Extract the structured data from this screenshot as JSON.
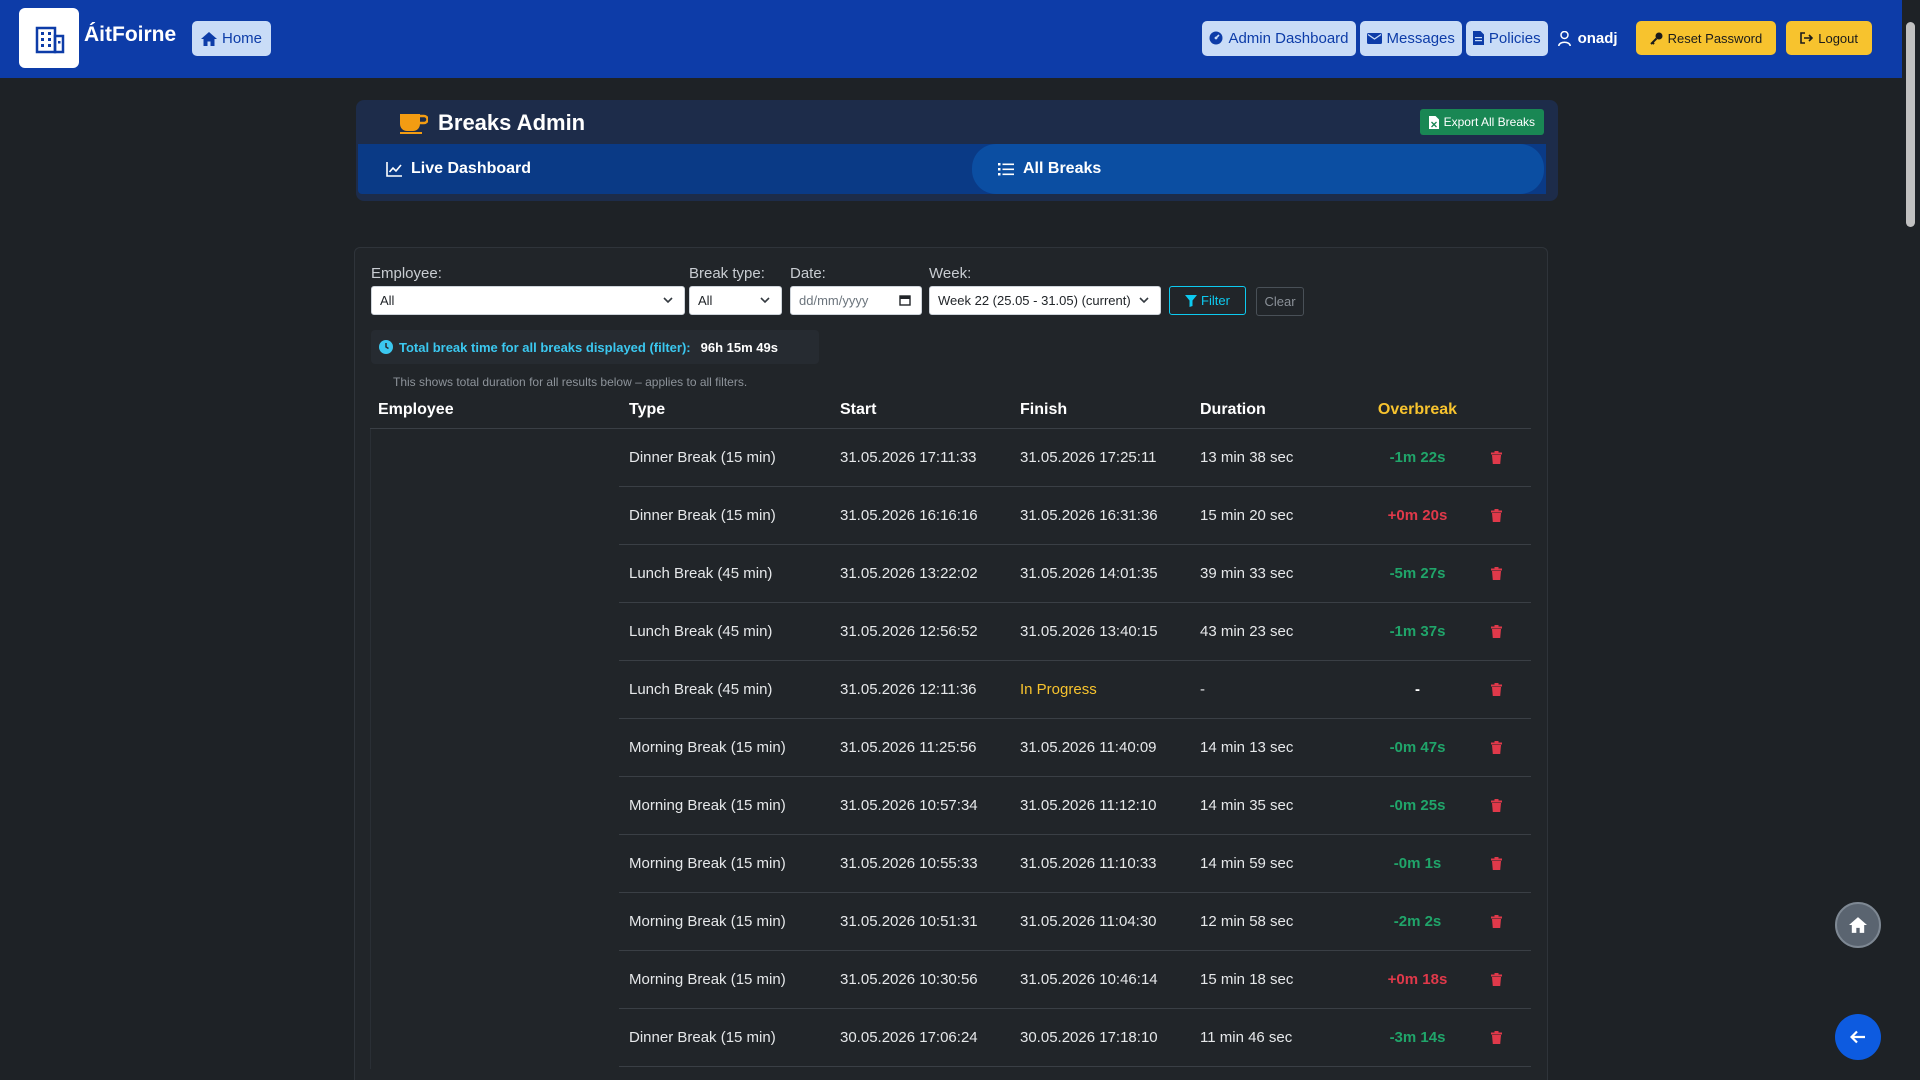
{
  "navbar": {
    "brand": "ÁitFoirne",
    "home_label": "Home",
    "admin_dashboard_label": "Admin Dashboard",
    "messages_label": "Messages",
    "policies_label": "Policies",
    "username": "onadj",
    "reset_password_label": "Reset Password",
    "logout_label": "Logout"
  },
  "header": {
    "title": "Breaks Admin",
    "export_label": "Export All Breaks",
    "tabs": [
      {
        "label": "Live Dashboard"
      },
      {
        "label": "All Breaks"
      }
    ]
  },
  "filters": {
    "employee_label": "Employee:",
    "employee_value": "All",
    "break_type_label": "Break type:",
    "break_type_value": "All",
    "date_label": "Date:",
    "date_placeholder": "dd/mm/yyyy",
    "week_label": "Week:",
    "week_value": "Week 22 (25.05 - 31.05) (current)",
    "filter_label": "Filter",
    "clear_label": "Clear"
  },
  "summary": {
    "total_label": "Total break time for all breaks displayed (filter):",
    "total_value": "96h 15m 49s",
    "note": "This shows total duration for all results below – applies to all filters."
  },
  "table": {
    "headers": {
      "employee": "Employee",
      "type": "Type",
      "start": "Start",
      "finish": "Finish",
      "duration": "Duration",
      "overbreak": "Overbreak"
    },
    "rows": [
      {
        "type": "Dinner Break (15 min)",
        "start": "31.05.2026 17:11:33",
        "finish": "31.05.2026 17:25:11",
        "duration": "13 min 38 sec",
        "overbreak": "-1m 22s",
        "status": "green"
      },
      {
        "type": "Dinner Break (15 min)",
        "start": "31.05.2026 16:16:16",
        "finish": "31.05.2026 16:31:36",
        "duration": "15 min 20 sec",
        "overbreak": "+0m 20s",
        "status": "red"
      },
      {
        "type": "Lunch Break (45 min)",
        "start": "31.05.2026 13:22:02",
        "finish": "31.05.2026 14:01:35",
        "duration": "39 min 33 sec",
        "overbreak": "-5m 27s",
        "status": "green"
      },
      {
        "type": "Lunch Break (45 min)",
        "start": "31.05.2026 12:56:52",
        "finish": "31.05.2026 13:40:15",
        "duration": "43 min 23 sec",
        "overbreak": "-1m 37s",
        "status": "green"
      },
      {
        "type": "Lunch Break (45 min)",
        "start": "31.05.2026 12:11:36",
        "finish": "In Progress",
        "duration": "-",
        "overbreak": "-",
        "status": "white"
      },
      {
        "type": "Morning Break (15 min)",
        "start": "31.05.2026 11:25:56",
        "finish": "31.05.2026 11:40:09",
        "duration": "14 min 13 sec",
        "overbreak": "-0m 47s",
        "status": "green"
      },
      {
        "type": "Morning Break (15 min)",
        "start": "31.05.2026 10:57:34",
        "finish": "31.05.2026 11:12:10",
        "duration": "14 min 35 sec",
        "overbreak": "-0m 25s",
        "status": "green"
      },
      {
        "type": "Morning Break (15 min)",
        "start": "31.05.2026 10:55:33",
        "finish": "31.05.2026 11:10:33",
        "duration": "14 min 59 sec",
        "overbreak": "-0m 1s",
        "status": "green"
      },
      {
        "type": "Morning Break (15 min)",
        "start": "31.05.2026 10:51:31",
        "finish": "31.05.2026 11:04:30",
        "duration": "12 min 58 sec",
        "overbreak": "-2m 2s",
        "status": "green"
      },
      {
        "type": "Morning Break (15 min)",
        "start": "31.05.2026 10:30:56",
        "finish": "31.05.2026 10:46:14",
        "duration": "15 min 18 sec",
        "overbreak": "+0m 18s",
        "status": "red"
      },
      {
        "type": "Dinner Break (15 min)",
        "start": "30.05.2026 17:06:24",
        "finish": "30.05.2026 17:18:10",
        "duration": "11 min 46 sec",
        "overbreak": "-3m 14s",
        "status": "green"
      }
    ]
  },
  "icons": {
    "logo": "building-icon",
    "home": "house-icon",
    "admin": "gauge-icon",
    "messages": "envelope-icon",
    "policies": "document-icon",
    "user": "user-icon",
    "reset": "key-icon",
    "logout": "logout-icon",
    "title": "coffee-cup-icon",
    "export": "file-excel-icon",
    "live": "line-chart-icon",
    "all": "list-icon",
    "filter": "funnel-icon",
    "clock": "clock-icon",
    "delete": "trash-icon",
    "fab_home": "house-icon",
    "fab_back": "arrow-left-icon"
  },
  "colors": {
    "navbar": "#0d3ca8",
    "accent_yellow": "#f7c32e",
    "success": "#20a56a",
    "danger": "#e0394a",
    "info": "#0dcaf0"
  }
}
